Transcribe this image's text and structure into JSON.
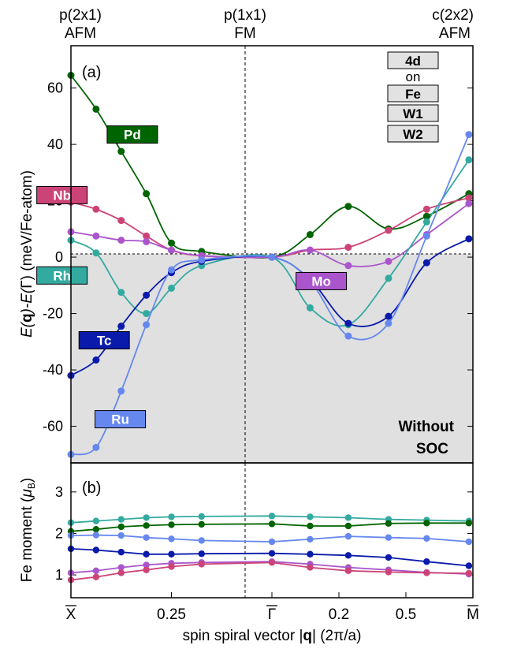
{
  "chart_data": [
    {
      "type": "line",
      "panel_label": "(a)",
      "ylabel_parts": [
        "E(",
        "q",
        ")-E(",
        "Γ",
        ") (meV/Fe-atom)"
      ],
      "ylim": [
        -73,
        75
      ],
      "yticks": [
        "-60",
        "-40",
        "-20",
        "0",
        "20",
        "40",
        "60"
      ],
      "ytick_values": [
        -60,
        -40,
        -20,
        0,
        20,
        40,
        60
      ],
      "top_labels": [
        {
          "line1": "p(2x1)",
          "line2": "AFM",
          "x": 0
        },
        {
          "line1": "p(1x1)",
          "line2": "FM",
          "x": 0.5
        },
        {
          "line1": "c(2x2)",
          "line2": "AFM",
          "x": 1
        }
      ],
      "note_line1": "Without",
      "note_line2": "SOC",
      "legend_box": {
        "items": [
          "4d",
          "on",
          "Fe",
          "W1",
          "W2"
        ]
      },
      "series": [
        {
          "name": "Pd",
          "color": "#006400",
          "x": [
            0,
            0.0625,
            0.125,
            0.1875,
            0.25,
            0.325,
            0.5,
            0.595,
            0.69,
            0.79,
            0.885,
            0.99
          ],
          "y": [
            64.5,
            52.5,
            37.5,
            22.5,
            5,
            2,
            0,
            8,
            18,
            10,
            14.5,
            22.5
          ]
        },
        {
          "name": "Nb",
          "color": "#cc4477",
          "x": [
            0,
            0.0625,
            0.125,
            0.1875,
            0.25,
            0.325,
            0.5,
            0.595,
            0.69,
            0.79,
            0.885,
            0.99
          ],
          "y": [
            19.5,
            17,
            13,
            7.5,
            2.5,
            0.5,
            0,
            2.5,
            3.5,
            9.5,
            17,
            21
          ]
        },
        {
          "name": "Mo",
          "color": "#aa55cc",
          "x": [
            0,
            0.0625,
            0.125,
            0.1875,
            0.25,
            0.325,
            0.5,
            0.595,
            0.69,
            0.79,
            0.885,
            0.99
          ],
          "y": [
            9,
            7.5,
            6,
            5.5,
            2.5,
            0.5,
            0,
            2.5,
            -3,
            -1.5,
            8,
            19
          ]
        },
        {
          "name": "Rh",
          "color": "#33aaa0",
          "x": [
            0,
            0.0625,
            0.125,
            0.1875,
            0.25,
            0.325,
            0.5,
            0.595,
            0.69,
            0.79,
            0.885,
            0.99
          ],
          "y": [
            6,
            1.5,
            -12.5,
            -20,
            -11,
            -3,
            0,
            -18,
            -24,
            -7.5,
            12.5,
            34.5
          ]
        },
        {
          "name": "Tc",
          "color": "#0a1aaa",
          "x": [
            0,
            0.0625,
            0.125,
            0.1875,
            0.25,
            0.325,
            0.5,
            0.595,
            0.69,
            0.79,
            0.885,
            0.99
          ],
          "y": [
            -42,
            -36.5,
            -24.5,
            -13.5,
            -5.5,
            -1.5,
            0,
            -8,
            -23.5,
            -21,
            -2,
            6.5
          ]
        },
        {
          "name": "Ru",
          "color": "#6688ee",
          "x": [
            0,
            0.0625,
            0.125,
            0.1875,
            0.25,
            0.325,
            0.5,
            0.595,
            0.69,
            0.79,
            0.885,
            0.99
          ],
          "y": [
            -70,
            -67.5,
            -47.5,
            -24,
            -4.5,
            -1,
            0,
            -8.5,
            -28,
            -23.5,
            7.5,
            43.5
          ]
        }
      ],
      "series_labels": [
        {
          "name": "Pd",
          "x": 0.09,
          "y": 43.5
        },
        {
          "name": "Nb",
          "x": -0.085,
          "y": 22
        },
        {
          "name": "Rh",
          "x": -0.085,
          "y": -6.5
        },
        {
          "name": "Tc",
          "x": 0.02,
          "y": -29.5
        },
        {
          "name": "Ru",
          "x": 0.06,
          "y": -57.5
        },
        {
          "name": "Mo",
          "x": 0.56,
          "y": -8.5
        }
      ]
    },
    {
      "type": "line",
      "panel_label": "(b)",
      "ylabel_parts": [
        "Fe moment (",
        "μ",
        "B",
        ")"
      ],
      "ylim": [
        0.45,
        3.7
      ],
      "yticks": [
        "1",
        "2",
        "3"
      ],
      "ytick_values": [
        1,
        2,
        3
      ],
      "xticks": [
        "X",
        "0.25",
        "Γ",
        "0.2",
        "0.5",
        "M"
      ],
      "xtick_positions": [
        0,
        0.25,
        0.5,
        0.6667,
        0.8333,
        1
      ],
      "xlabel_parts": [
        "spin spiral vector |",
        "q",
        "| (2π/a)"
      ],
      "series": [
        {
          "name": "Rh",
          "color": "#33aaa0",
          "x": [
            0,
            0.0625,
            0.125,
            0.1875,
            0.25,
            0.325,
            0.5,
            0.595,
            0.69,
            0.79,
            0.885,
            0.99
          ],
          "y": [
            2.26,
            2.3,
            2.34,
            2.38,
            2.4,
            2.41,
            2.42,
            2.4,
            2.38,
            2.34,
            2.32,
            2.3
          ]
        },
        {
          "name": "Pd",
          "color": "#006400",
          "x": [
            0,
            0.0625,
            0.125,
            0.1875,
            0.25,
            0.325,
            0.5,
            0.595,
            0.69,
            0.79,
            0.885,
            0.99
          ],
          "y": [
            2.05,
            2.1,
            2.16,
            2.19,
            2.21,
            2.22,
            2.23,
            2.18,
            2.18,
            2.24,
            2.25,
            2.25
          ]
        },
        {
          "name": "Ru",
          "color": "#6688ee",
          "x": [
            0,
            0.0625,
            0.125,
            0.1875,
            0.25,
            0.325,
            0.5,
            0.595,
            0.69,
            0.79,
            0.885,
            0.99
          ],
          "y": [
            1.95,
            1.96,
            1.95,
            1.9,
            1.87,
            1.83,
            1.8,
            1.86,
            1.93,
            1.9,
            1.88,
            1.8
          ]
        },
        {
          "name": "Tc",
          "color": "#0a1aaa",
          "x": [
            0,
            0.0625,
            0.125,
            0.1875,
            0.25,
            0.325,
            0.5,
            0.595,
            0.69,
            0.79,
            0.885,
            0.99
          ],
          "y": [
            1.63,
            1.6,
            1.55,
            1.5,
            1.5,
            1.51,
            1.52,
            1.5,
            1.47,
            1.42,
            1.32,
            1.22
          ]
        },
        {
          "name": "Mo",
          "color": "#aa55cc",
          "x": [
            0,
            0.0625,
            0.125,
            0.1875,
            0.25,
            0.325,
            0.5,
            0.595,
            0.69,
            0.79,
            0.885,
            0.99
          ],
          "y": [
            1.05,
            1.1,
            1.18,
            1.24,
            1.28,
            1.3,
            1.32,
            1.26,
            1.18,
            1.12,
            1.06,
            1.02
          ]
        },
        {
          "name": "Nb",
          "color": "#cc4477",
          "x": [
            0,
            0.0625,
            0.125,
            0.1875,
            0.25,
            0.325,
            0.5,
            0.595,
            0.69,
            0.79,
            0.885,
            0.99
          ],
          "y": [
            0.88,
            0.95,
            1.05,
            1.12,
            1.2,
            1.26,
            1.3,
            1.18,
            1.1,
            1.07,
            1.05,
            1.04
          ]
        }
      ]
    }
  ]
}
